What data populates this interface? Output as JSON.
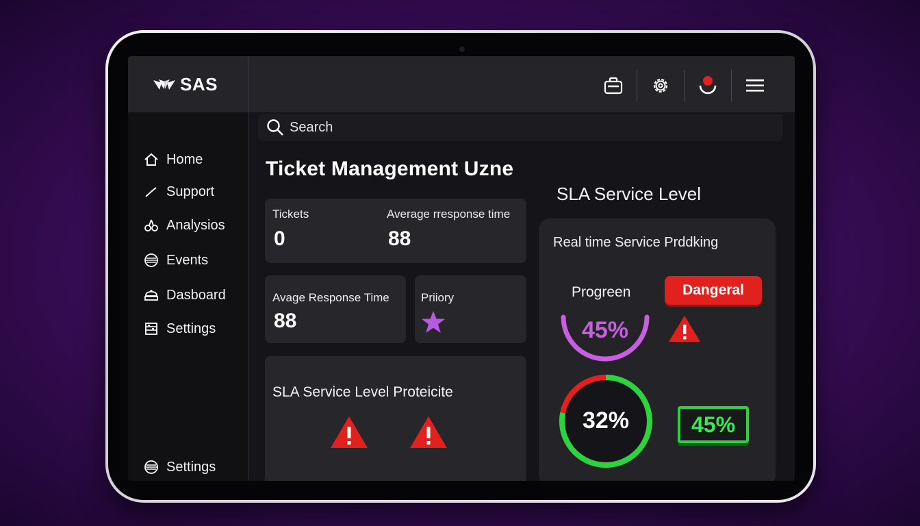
{
  "brand": {
    "name": "SAS"
  },
  "topbar": {
    "icons": [
      "briefcase-icon",
      "gear-icon",
      "user-alert-icon",
      "hamburger-menu-icon"
    ],
    "notification_color": "#e0211e"
  },
  "search": {
    "label": "Search"
  },
  "sidebar": {
    "items": [
      {
        "label": "Home",
        "icon": "home-icon"
      },
      {
        "label": "Support",
        "icon": "support-icon"
      },
      {
        "label": "Analysios",
        "icon": "analytics-icon"
      },
      {
        "label": "Events",
        "icon": "events-icon"
      },
      {
        "label": "Dasboard",
        "icon": "dashboard-icon"
      },
      {
        "label": "Settings",
        "icon": "settings-icon"
      }
    ],
    "bottom_item": {
      "label": "Settings",
      "icon": "settings-icon"
    }
  },
  "main": {
    "title": "Ticket Management Uzne",
    "stats_card": {
      "tickets_label": "Tickets",
      "tickets_value": "0",
      "avg_label": "Average rresponse time",
      "avg_value": "88"
    },
    "response_card": {
      "label": "Avage Response Time",
      "value": "88"
    },
    "priority_card": {
      "label": "Priiory",
      "icon": "star-icon"
    },
    "sla_card": {
      "label": "SLA Service Level Proteicite",
      "icons": [
        "warning-icon",
        "warning-icon"
      ]
    }
  },
  "sla_panel": {
    "heading": "SLA Service Level",
    "title": "Real time Service Prddking",
    "progress_label": "Progreen",
    "danger_label": "Dangeral",
    "arc": {
      "value_text": "45%",
      "value": 45,
      "color": "#c75fe0"
    },
    "donut": {
      "value_text": "32%",
      "value": 32,
      "red_color": "#e0211e",
      "green_color": "#2bd43f"
    },
    "green_badge": "45%"
  }
}
